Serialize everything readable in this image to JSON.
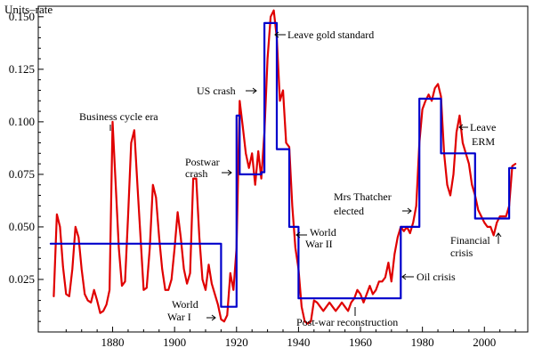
{
  "chart_data": {
    "type": "line",
    "title": "",
    "xlabel": "",
    "ylabel": "Units–rate",
    "xlim": [
      1856,
      2014
    ],
    "ylim": [
      0,
      0.155
    ],
    "x_ticks": [
      1880,
      1900,
      1920,
      1940,
      1960,
      1980,
      2000
    ],
    "y_ticks": [
      0.025,
      0.05,
      0.075,
      0.1,
      0.125,
      0.15
    ],
    "y_tick_labels": [
      "0.025",
      "0.050",
      "0.075",
      "0.100",
      "0.125",
      "0.150"
    ],
    "grid": false,
    "legend": "none",
    "series": [
      {
        "color": "#e00000",
        "points": [
          [
            1861,
            0.017
          ],
          [
            1862,
            0.056
          ],
          [
            1863,
            0.05
          ],
          [
            1864,
            0.031
          ],
          [
            1865,
            0.018
          ],
          [
            1866,
            0.017
          ],
          [
            1867,
            0.03
          ],
          [
            1868,
            0.05
          ],
          [
            1869,
            0.045
          ],
          [
            1870,
            0.03
          ],
          [
            1871,
            0.018
          ],
          [
            1872,
            0.015
          ],
          [
            1873,
            0.014
          ],
          [
            1874,
            0.02
          ],
          [
            1875,
            0.015
          ],
          [
            1876,
            0.009
          ],
          [
            1877,
            0.01
          ],
          [
            1878,
            0.013
          ],
          [
            1879,
            0.02
          ],
          [
            1880,
            0.1
          ],
          [
            1881,
            0.07
          ],
          [
            1882,
            0.04
          ],
          [
            1883,
            0.022
          ],
          [
            1884,
            0.024
          ],
          [
            1885,
            0.055
          ],
          [
            1886,
            0.09
          ],
          [
            1887,
            0.096
          ],
          [
            1888,
            0.07
          ],
          [
            1889,
            0.045
          ],
          [
            1890,
            0.02
          ],
          [
            1891,
            0.021
          ],
          [
            1892,
            0.04
          ],
          [
            1893,
            0.07
          ],
          [
            1894,
            0.064
          ],
          [
            1895,
            0.045
          ],
          [
            1896,
            0.03
          ],
          [
            1897,
            0.02
          ],
          [
            1898,
            0.02
          ],
          [
            1899,
            0.025
          ],
          [
            1900,
            0.04
          ],
          [
            1901,
            0.057
          ],
          [
            1902,
            0.045
          ],
          [
            1903,
            0.03
          ],
          [
            1904,
            0.023
          ],
          [
            1905,
            0.028
          ],
          [
            1906,
            0.073
          ],
          [
            1907,
            0.073
          ],
          [
            1908,
            0.045
          ],
          [
            1909,
            0.025
          ],
          [
            1910,
            0.02
          ],
          [
            1911,
            0.032
          ],
          [
            1912,
            0.023
          ],
          [
            1913,
            0.018
          ],
          [
            1914,
            0.013
          ],
          [
            1915,
            0.006
          ],
          [
            1916,
            0.005
          ],
          [
            1917,
            0.008
          ],
          [
            1918,
            0.028
          ],
          [
            1919,
            0.02
          ],
          [
            1920,
            0.04
          ],
          [
            1921,
            0.11
          ],
          [
            1922,
            0.098
          ],
          [
            1923,
            0.085
          ],
          [
            1924,
            0.078
          ],
          [
            1925,
            0.085
          ],
          [
            1926,
            0.07
          ],
          [
            1927,
            0.086
          ],
          [
            1928,
            0.073
          ],
          [
            1929,
            0.095
          ],
          [
            1930,
            0.13
          ],
          [
            1931,
            0.15
          ],
          [
            1932,
            0.153
          ],
          [
            1933,
            0.14
          ],
          [
            1934,
            0.11
          ],
          [
            1935,
            0.115
          ],
          [
            1936,
            0.09
          ],
          [
            1937,
            0.088
          ],
          [
            1938,
            0.06
          ],
          [
            1939,
            0.04
          ],
          [
            1940,
            0.03
          ],
          [
            1941,
            0.012
          ],
          [
            1942,
            0.005
          ],
          [
            1943,
            0.004
          ],
          [
            1944,
            0.005
          ],
          [
            1945,
            0.015
          ],
          [
            1946,
            0.014
          ],
          [
            1947,
            0.012
          ],
          [
            1948,
            0.01
          ],
          [
            1949,
            0.012
          ],
          [
            1950,
            0.014
          ],
          [
            1951,
            0.012
          ],
          [
            1952,
            0.01
          ],
          [
            1953,
            0.012
          ],
          [
            1954,
            0.014
          ],
          [
            1955,
            0.012
          ],
          [
            1956,
            0.01
          ],
          [
            1957,
            0.014
          ],
          [
            1958,
            0.016
          ],
          [
            1959,
            0.02
          ],
          [
            1960,
            0.018
          ],
          [
            1961,
            0.014
          ],
          [
            1962,
            0.018
          ],
          [
            1963,
            0.022
          ],
          [
            1964,
            0.018
          ],
          [
            1965,
            0.02
          ],
          [
            1966,
            0.024
          ],
          [
            1967,
            0.024
          ],
          [
            1968,
            0.026
          ],
          [
            1969,
            0.033
          ],
          [
            1970,
            0.024
          ],
          [
            1971,
            0.037
          ],
          [
            1972,
            0.045
          ],
          [
            1973,
            0.05
          ],
          [
            1974,
            0.048
          ],
          [
            1975,
            0.05
          ],
          [
            1976,
            0.047
          ],
          [
            1977,
            0.052
          ],
          [
            1978,
            0.06
          ],
          [
            1979,
            0.09
          ],
          [
            1980,
            0.106
          ],
          [
            1981,
            0.11
          ],
          [
            1982,
            0.113
          ],
          [
            1983,
            0.11
          ],
          [
            1984,
            0.116
          ],
          [
            1985,
            0.118
          ],
          [
            1986,
            0.112
          ],
          [
            1987,
            0.085
          ],
          [
            1988,
            0.07
          ],
          [
            1989,
            0.065
          ],
          [
            1990,
            0.075
          ],
          [
            1991,
            0.095
          ],
          [
            1992,
            0.103
          ],
          [
            1993,
            0.09
          ],
          [
            1994,
            0.085
          ],
          [
            1995,
            0.08
          ],
          [
            1996,
            0.07
          ],
          [
            1997,
            0.065
          ],
          [
            1998,
            0.058
          ],
          [
            1999,
            0.055
          ],
          [
            2000,
            0.052
          ],
          [
            2001,
            0.05
          ],
          [
            2002,
            0.05
          ],
          [
            2003,
            0.046
          ],
          [
            2004,
            0.052
          ],
          [
            2005,
            0.055
          ],
          [
            2006,
            0.055
          ],
          [
            2007,
            0.055
          ],
          [
            2008,
            0.06
          ],
          [
            2009,
            0.079
          ],
          [
            2010,
            0.08
          ]
        ]
      },
      {
        "color": "#0000cc",
        "points": [
          [
            1860,
            0.042
          ],
          [
            1915,
            0.042
          ],
          [
            1915,
            0.012
          ],
          [
            1920,
            0.012
          ],
          [
            1920,
            0.103
          ],
          [
            1921,
            0.103
          ],
          [
            1921,
            0.075
          ],
          [
            1928,
            0.075
          ],
          [
            1928,
            0.076
          ],
          [
            1929,
            0.076
          ],
          [
            1929,
            0.147
          ],
          [
            1933,
            0.147
          ],
          [
            1933,
            0.087
          ],
          [
            1936,
            0.087
          ],
          [
            1936,
            0.087
          ],
          [
            1937,
            0.087
          ],
          [
            1937,
            0.05
          ],
          [
            1940,
            0.05
          ],
          [
            1940,
            0.016
          ],
          [
            1973,
            0.016
          ],
          [
            1973,
            0.05
          ],
          [
            1979,
            0.05
          ],
          [
            1979,
            0.111
          ],
          [
            1986,
            0.111
          ],
          [
            1986,
            0.085
          ],
          [
            1997,
            0.085
          ],
          [
            1997,
            0.054
          ],
          [
            2008,
            0.054
          ],
          [
            2008,
            0.078
          ],
          [
            2010,
            0.078
          ]
        ]
      }
    ],
    "annotations": [
      {
        "label": "Business cycle era",
        "x": 1880,
        "y": 0.1
      },
      {
        "label": "US crash",
        "x": 1929,
        "y": 0.125
      },
      {
        "label": "Leave gold standard",
        "x": 1932,
        "y": 0.152
      },
      {
        "label": "Postwar",
        "x": 1920,
        "y": 0.09
      },
      {
        "label": "crash",
        "x": 1920,
        "y": 0.08
      },
      {
        "label": "World",
        "x": 1937,
        "y": 0.05
      },
      {
        "label": "War II",
        "x": 1937,
        "y": 0.045
      },
      {
        "label": "World",
        "x": 1912,
        "y": 0.012
      },
      {
        "label": "War I",
        "x": 1912,
        "y": 0.006
      },
      {
        "label": "Post-war reconstruction",
        "x": 1960,
        "y": 0.005
      },
      {
        "label": "Mrs Thatcher",
        "x": 1979,
        "y": 0.065
      },
      {
        "label": "elected",
        "x": 1979,
        "y": 0.06
      },
      {
        "label": "Oil crisis",
        "x": 1974,
        "y": 0.022
      },
      {
        "label": "Leave",
        "x": 1992,
        "y": 0.103
      },
      {
        "label": "ERM",
        "x": 1992,
        "y": 0.098
      },
      {
        "label": "Financial",
        "x": 2008,
        "y": 0.055
      },
      {
        "label": "crisis",
        "x": 2008,
        "y": 0.048
      }
    ]
  }
}
